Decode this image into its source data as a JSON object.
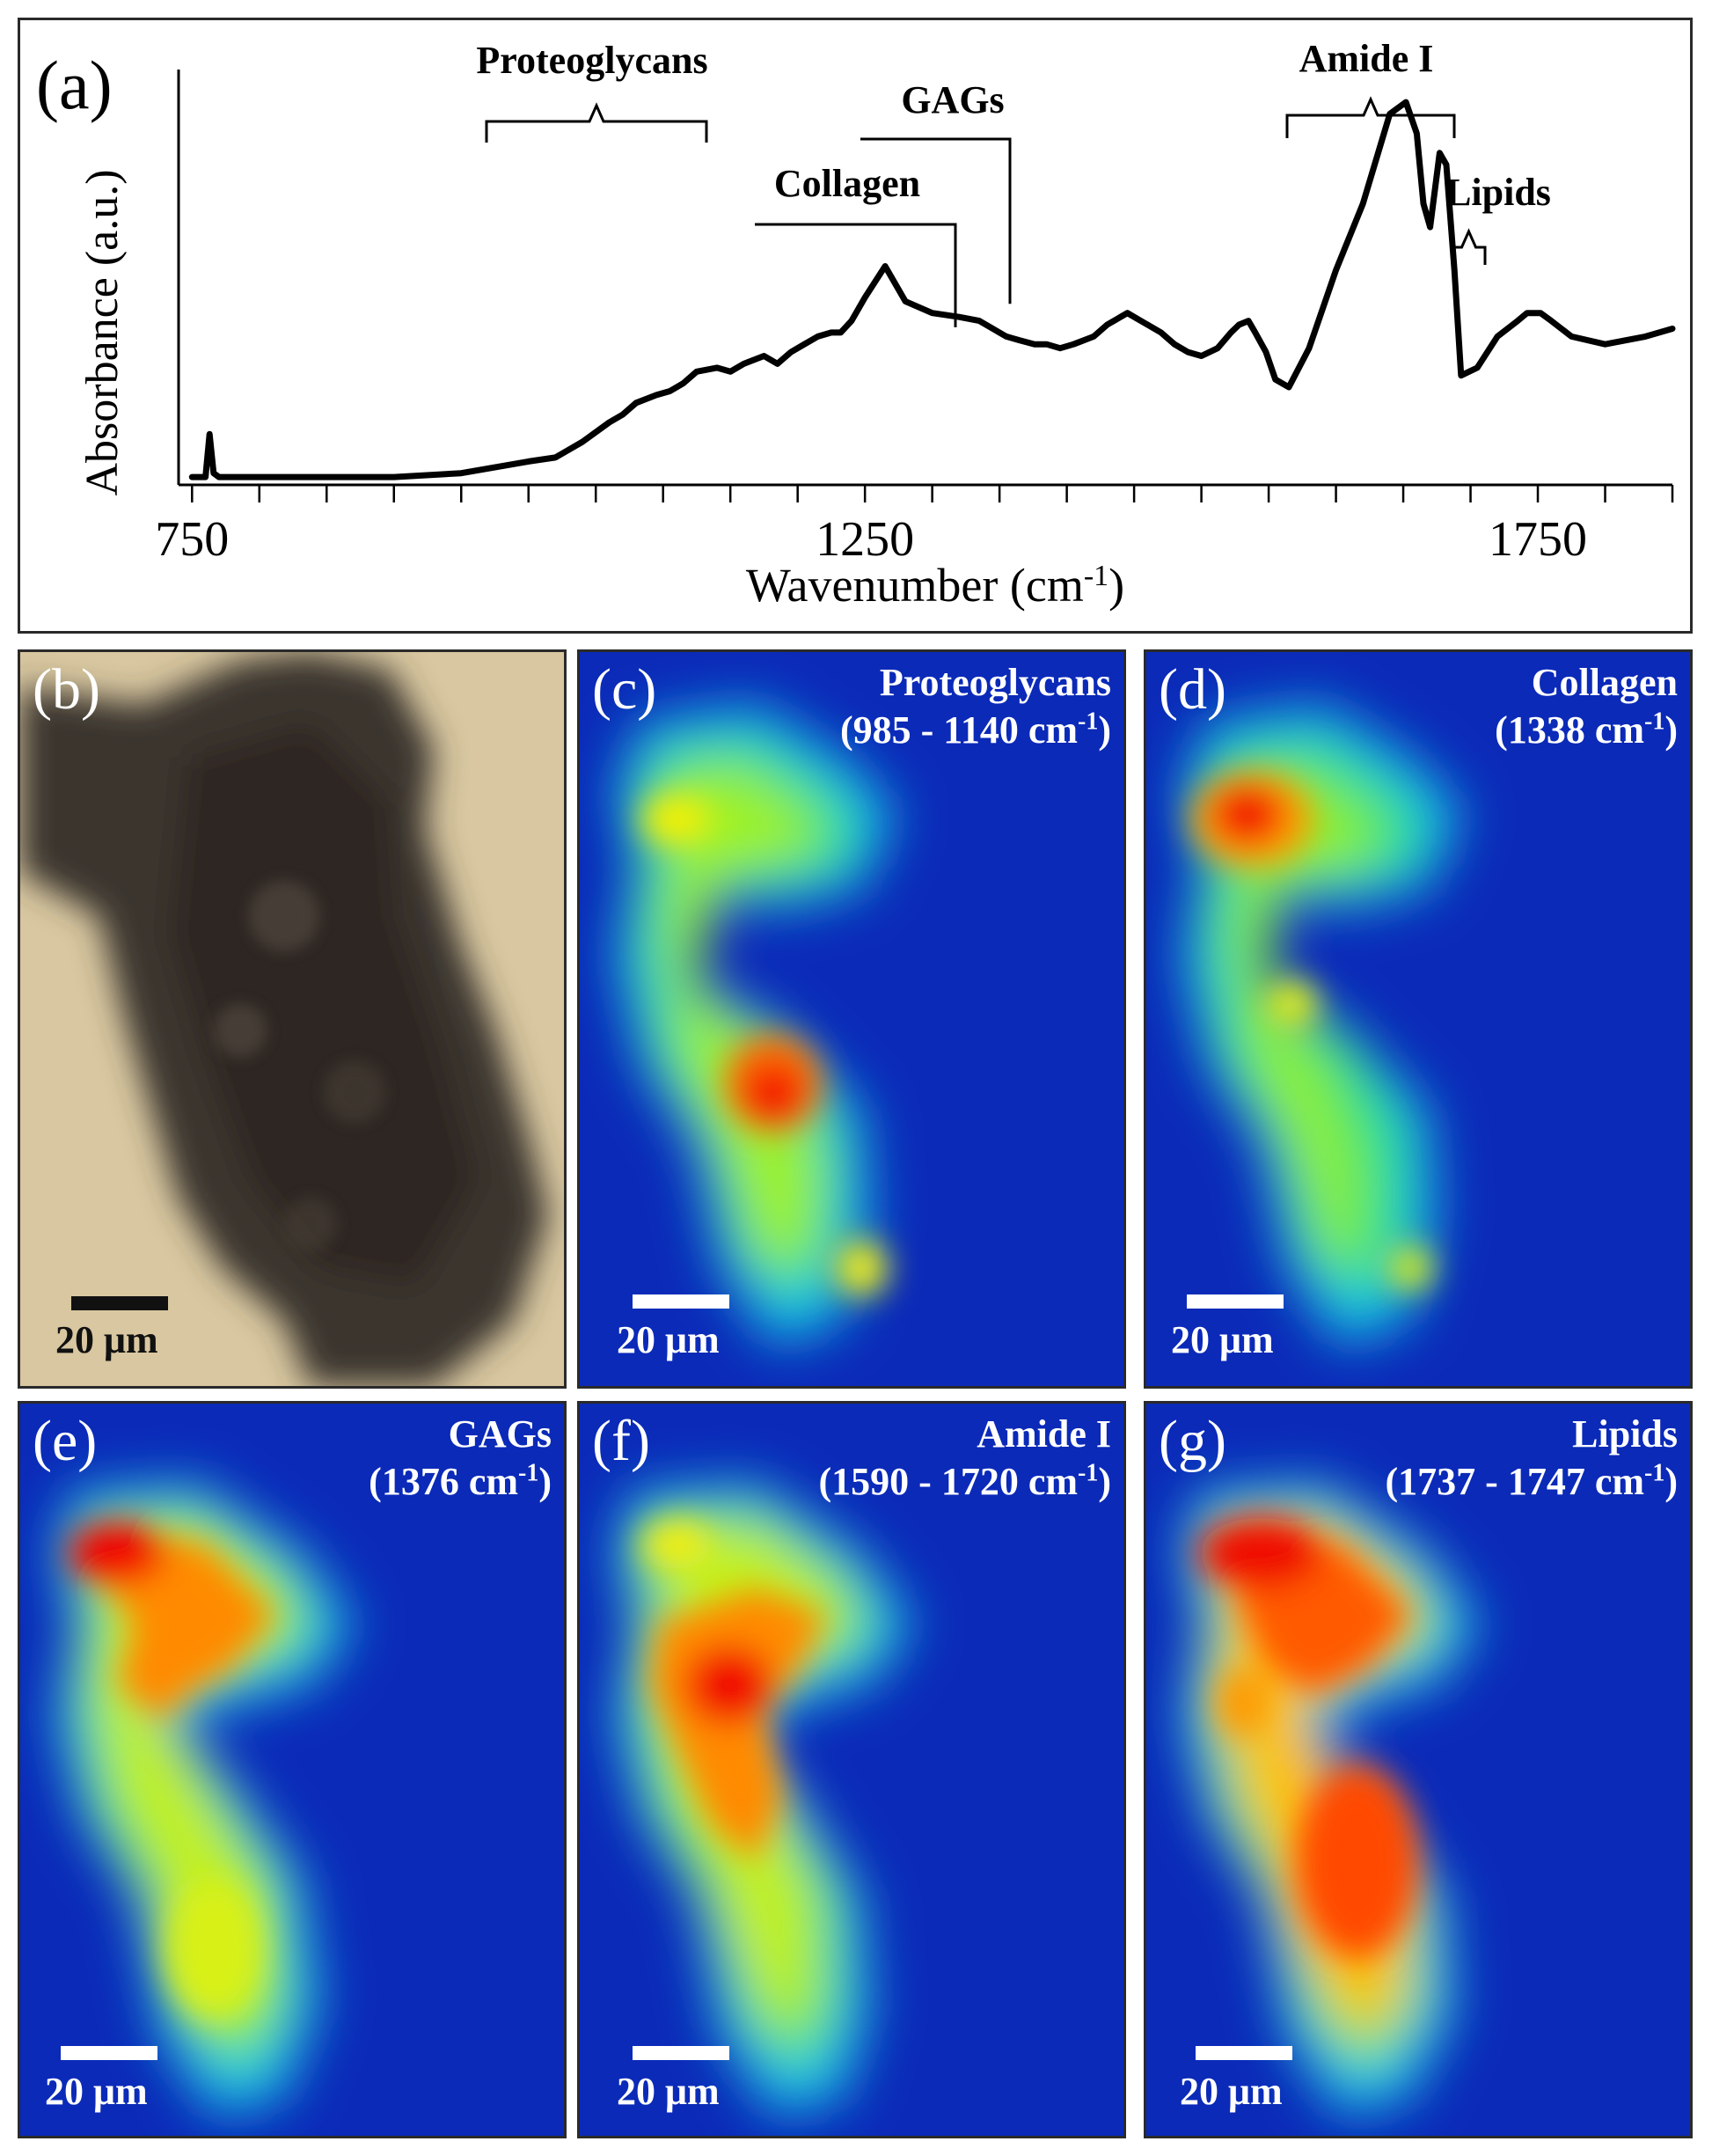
{
  "chart_data": {
    "type": "line",
    "panel_label": "(a)",
    "xlabel": "Wavenumber",
    "xlabel_unit_base": "(cm",
    "xlabel_unit_exp": "-1",
    "xlabel_unit_close": ")",
    "ylabel": "Absorbance (a.u.)",
    "xlim": [
      740,
      1850
    ],
    "ylim": [
      0,
      1.05
    ],
    "xticks": [
      750,
      1250,
      1750
    ],
    "xtick_labels": [
      "750",
      "1250",
      "1750"
    ],
    "minor_ticks": [
      750,
      800,
      850,
      900,
      950,
      1000,
      1050,
      1100,
      1150,
      1200,
      1250,
      1300,
      1350,
      1400,
      1450,
      1500,
      1550,
      1600,
      1650,
      1700,
      1750,
      1800,
      1850
    ],
    "series": [
      {
        "name": "spectrum",
        "x": [
          750,
          760,
          763,
          766,
          770,
          800,
          850,
          900,
          950,
          1000,
          1020,
          1040,
          1060,
          1070,
          1080,
          1095,
          1105,
          1115,
          1125,
          1140,
          1150,
          1160,
          1175,
          1185,
          1195,
          1205,
          1215,
          1225,
          1232,
          1240,
          1250,
          1265,
          1280,
          1300,
          1320,
          1335,
          1345,
          1355,
          1365,
          1376,
          1385,
          1395,
          1405,
          1420,
          1430,
          1445,
          1455,
          1460,
          1470,
          1480,
          1490,
          1500,
          1512,
          1522,
          1528,
          1535,
          1540,
          1548,
          1555,
          1565,
          1580,
          1600,
          1620,
          1640,
          1652,
          1660,
          1665,
          1670,
          1677,
          1682,
          1688,
          1693,
          1705,
          1720,
          1735,
          1742,
          1748,
          1752,
          1760,
          1775,
          1800,
          1830,
          1850
        ],
        "y": [
          0.02,
          0.02,
          0.13,
          0.03,
          0.02,
          0.02,
          0.02,
          0.02,
          0.03,
          0.06,
          0.07,
          0.11,
          0.16,
          0.18,
          0.21,
          0.23,
          0.24,
          0.26,
          0.29,
          0.3,
          0.29,
          0.31,
          0.33,
          0.31,
          0.34,
          0.36,
          0.38,
          0.39,
          0.39,
          0.42,
          0.48,
          0.56,
          0.47,
          0.44,
          0.43,
          0.42,
          0.4,
          0.38,
          0.37,
          0.36,
          0.36,
          0.35,
          0.36,
          0.38,
          0.41,
          0.44,
          0.42,
          0.41,
          0.39,
          0.36,
          0.34,
          0.33,
          0.35,
          0.39,
          0.41,
          0.42,
          0.39,
          0.34,
          0.27,
          0.25,
          0.35,
          0.55,
          0.72,
          0.95,
          0.98,
          0.9,
          0.72,
          0.66,
          0.85,
          0.82,
          0.55,
          0.28,
          0.3,
          0.38,
          0.42,
          0.44,
          0.44,
          0.44,
          0.42,
          0.38,
          0.36,
          0.38,
          0.4
        ]
      }
    ],
    "annotations": [
      {
        "text": "Proteoglycans"
      },
      {
        "text": "GAGs"
      },
      {
        "text": "Collagen"
      },
      {
        "text": "Amide I"
      },
      {
        "text": "Lipids"
      }
    ]
  },
  "maps": {
    "scale_text": "20 μm",
    "b": {
      "label": "(b)"
    },
    "c": {
      "label": "(c)",
      "title": "Proteoglycans",
      "range_base": "(985 - 1140 cm",
      "range_exp": "-1",
      "range_close": ")"
    },
    "d": {
      "label": "(d)",
      "title": "Collagen",
      "range_base": "(1338 cm",
      "range_exp": "-1",
      "range_close": ")"
    },
    "e": {
      "label": "(e)",
      "title": "GAGs",
      "range_base": "(1376 cm",
      "range_exp": "-1",
      "range_close": ")"
    },
    "f": {
      "label": "(f)",
      "title": "Amide I",
      "range_base": "(1590 - 1720 cm",
      "range_exp": "-1",
      "range_close": ")"
    },
    "g": {
      "label": "(g)",
      "title": "Lipids",
      "range_base": "(1737 - 1747 cm",
      "range_exp": "-1",
      "range_close": ")"
    }
  },
  "colors": {
    "map_background": "#0b2ab8",
    "photo_background": "#d8c7a0",
    "line": "#000000"
  }
}
